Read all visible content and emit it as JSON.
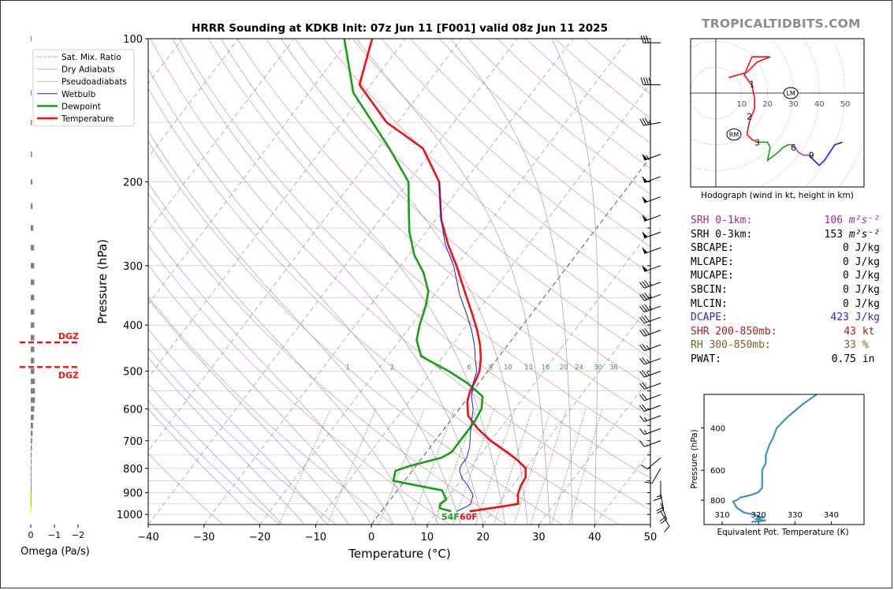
{
  "title": "HRRR Sounding at KDKB Init: 07z Jun 11 [F001] valid 08z Jun 11 2025",
  "brand": "TROPICALTIDBITS.COM",
  "colors": {
    "temperature": "#ee1111",
    "dewpoint": "#16a016",
    "wetbulb": "#1a1af0",
    "dry_adiabat": "#e07a7a",
    "moist_adiabat": "#9a9ad0",
    "mixing_ratio": "#3a9a3a",
    "isotherm": "#999999",
    "dgz": "#ee1111",
    "theta_e": "#3a96b4",
    "hodo_low": "#ee1111",
    "hodo_mid": "#16a016",
    "hodo_high1": "#b040b0",
    "hodo_high2": "#1a1af0",
    "srh01": "#9a2a9a",
    "dcape": "#2a2ac8",
    "shr": "#a02020",
    "rh": "#806020"
  },
  "chart_data": [
    {
      "type": "line",
      "name": "skewt",
      "xlabel": "Temperature (°C)",
      "ylabel": "Pressure (hPa)",
      "xlim": [
        -40,
        50
      ],
      "ylim": [
        1050,
        100
      ],
      "x_ticks": [
        "−40",
        "−30",
        "−20",
        "−10",
        "0",
        "10",
        "20",
        "30",
        "40",
        "50"
      ],
      "y_ticks": [
        "100",
        "200",
        "300",
        "400",
        "500",
        "600",
        "700",
        "800",
        "900",
        "1000"
      ],
      "legend_position": "top-left",
      "legend": [
        "Sat. Mix. Ratio",
        "Dry Adiabats",
        "Pseudoadiabats",
        "Wetbulb",
        "Dewpoint",
        "Temperature"
      ],
      "mixing_ratio_labels": [
        "1",
        "2",
        "4",
        "6",
        "8",
        "10",
        "13",
        "16",
        "20",
        "24",
        "30",
        "36"
      ],
      "sfc_dewpoint_label": "54F",
      "sfc_temperature_label": "60F",
      "series": [
        {
          "name": "Temperature",
          "points": [
            [
              15.8,
              985
            ],
            [
              21.5,
              960
            ],
            [
              23.5,
              950
            ],
            [
              22.2,
              910
            ],
            [
              21.5,
              870
            ],
            [
              21.2,
              835
            ],
            [
              20.0,
              800
            ],
            [
              17.5,
              770
            ],
            [
              14.5,
              740
            ],
            [
              10.0,
              700
            ],
            [
              6.0,
              660
            ],
            [
              2.5,
              620
            ],
            [
              0.5,
              580
            ],
            [
              -0.5,
              550
            ],
            [
              -1.0,
              520
            ],
            [
              -1.5,
              500
            ],
            [
              -3.0,
              470
            ],
            [
              -5.0,
              440
            ],
            [
              -7.5,
              410
            ],
            [
              -10.5,
              380
            ],
            [
              -15.0,
              340
            ],
            [
              -20.0,
              300
            ],
            [
              -24.5,
              270
            ],
            [
              -29.0,
              240
            ],
            [
              -34.5,
              200
            ],
            [
              -42.0,
              170
            ],
            [
              -52.0,
              150
            ],
            [
              -62.0,
              125
            ],
            [
              -66.0,
              100
            ]
          ]
        },
        {
          "name": "Dewpoint",
          "points": [
            [
              12.5,
              985
            ],
            [
              10.0,
              970
            ],
            [
              9.5,
              950
            ],
            [
              10.0,
              930
            ],
            [
              8.0,
              890
            ],
            [
              -2.0,
              850
            ],
            [
              -3.0,
              810
            ],
            [
              -1.0,
              790
            ],
            [
              3.5,
              760
            ],
            [
              4.5,
              740
            ],
            [
              4.5,
              700
            ],
            [
              4.5,
              640
            ],
            [
              4.0,
              600
            ],
            [
              2.5,
              565
            ],
            [
              -2.0,
              530
            ],
            [
              -7.0,
              500
            ],
            [
              -14.0,
              465
            ],
            [
              -17.0,
              430
            ],
            [
              -18.5,
              400
            ],
            [
              -20.0,
              365
            ],
            [
              -21.5,
              340
            ],
            [
              -25.0,
              310
            ],
            [
              -29.0,
              285
            ],
            [
              -33.0,
              255
            ],
            [
              -36.0,
              230
            ],
            [
              -40.0,
              200
            ],
            [
              -48.0,
              170
            ],
            [
              -62.0,
              130
            ],
            [
              -71.0,
              100
            ]
          ]
        },
        {
          "name": "Wetbulb",
          "points": [
            [
              13.5,
              985
            ],
            [
              14.5,
              965
            ],
            [
              15.0,
              950
            ],
            [
              14.2,
              910
            ],
            [
              12.0,
              870
            ],
            [
              10.0,
              840
            ],
            [
              8.5,
              810
            ],
            [
              8.0,
              790
            ],
            [
              8.0,
              760
            ],
            [
              7.0,
              720
            ],
            [
              5.5,
              680
            ],
            [
              4.0,
              640
            ],
            [
              2.5,
              600
            ],
            [
              0.5,
              565
            ],
            [
              -1.0,
              530
            ],
            [
              -2.0,
              500
            ],
            [
              -4.0,
              470
            ],
            [
              -6.0,
              440
            ],
            [
              -8.5,
              410
            ],
            [
              -11.5,
              380
            ],
            [
              -15.5,
              345
            ],
            [
              -20.5,
              300
            ],
            [
              -25.0,
              270
            ],
            [
              -29.0,
              240
            ],
            [
              -34.5,
              200
            ]
          ]
        }
      ],
      "wind_barbs_kt": [
        {
          "p": 985,
          "dir": 150,
          "spd": 10
        },
        {
          "p": 945,
          "dir": 160,
          "spd": 20
        },
        {
          "p": 900,
          "dir": 170,
          "spd": 20
        },
        {
          "p": 850,
          "dir": 180,
          "spd": 15
        },
        {
          "p": 800,
          "dir": 210,
          "spd": 10
        },
        {
          "p": 760,
          "dir": 230,
          "spd": 10
        },
        {
          "p": 700,
          "dir": 250,
          "spd": 10
        },
        {
          "p": 660,
          "dir": 250,
          "spd": 15
        },
        {
          "p": 620,
          "dir": 250,
          "spd": 15
        },
        {
          "p": 590,
          "dir": 250,
          "spd": 20
        },
        {
          "p": 560,
          "dir": 250,
          "spd": 20
        },
        {
          "p": 530,
          "dir": 250,
          "spd": 20
        },
        {
          "p": 500,
          "dir": 250,
          "spd": 25
        },
        {
          "p": 470,
          "dir": 250,
          "spd": 25
        },
        {
          "p": 440,
          "dir": 250,
          "spd": 25
        },
        {
          "p": 410,
          "dir": 250,
          "spd": 30
        },
        {
          "p": 385,
          "dir": 250,
          "spd": 30
        },
        {
          "p": 365,
          "dir": 250,
          "spd": 35
        },
        {
          "p": 345,
          "dir": 250,
          "spd": 35
        },
        {
          "p": 325,
          "dir": 250,
          "spd": 35
        },
        {
          "p": 300,
          "dir": 250,
          "spd": 50
        },
        {
          "p": 275,
          "dir": 250,
          "spd": 50
        },
        {
          "p": 255,
          "dir": 250,
          "spd": 50
        },
        {
          "p": 235,
          "dir": 250,
          "spd": 50
        },
        {
          "p": 215,
          "dir": 250,
          "spd": 50
        },
        {
          "p": 195,
          "dir": 250,
          "spd": 50
        },
        {
          "p": 175,
          "dir": 250,
          "spd": 55
        },
        {
          "p": 150,
          "dir": 260,
          "spd": 35
        },
        {
          "p": 125,
          "dir": 270,
          "spd": 40
        },
        {
          "p": 102,
          "dir": 270,
          "spd": 30
        }
      ]
    },
    {
      "type": "bar",
      "name": "omega",
      "xlabel": "Omega (Pa/s)",
      "x_ticks": [
        "0",
        "−1",
        "−2"
      ],
      "xlim": [
        1.3,
        -2.5
      ],
      "dgz_label": "DGZ",
      "dgz_pressures": [
        435,
        490
      ],
      "levels": [
        {
          "p": 100,
          "v": -0.05
        },
        {
          "p": 130,
          "v": -0.07
        },
        {
          "p": 150,
          "v": -0.09
        },
        {
          "p": 175,
          "v": -0.11
        },
        {
          "p": 200,
          "v": -0.13
        },
        {
          "p": 225,
          "v": -0.15
        },
        {
          "p": 250,
          "v": -0.22
        },
        {
          "p": 275,
          "v": -0.28
        },
        {
          "p": 300,
          "v": -0.3
        },
        {
          "p": 325,
          "v": -0.3
        },
        {
          "p": 350,
          "v": -0.3
        },
        {
          "p": 375,
          "v": -0.3
        },
        {
          "p": 400,
          "v": -0.3
        },
        {
          "p": 425,
          "v": -0.3
        },
        {
          "p": 450,
          "v": -0.3
        },
        {
          "p": 475,
          "v": -0.3
        },
        {
          "p": 500,
          "v": -0.3
        },
        {
          "p": 525,
          "v": -0.35
        },
        {
          "p": 550,
          "v": -0.35
        },
        {
          "p": 575,
          "v": -0.35
        },
        {
          "p": 600,
          "v": -0.3
        },
        {
          "p": 625,
          "v": -0.25
        },
        {
          "p": 650,
          "v": -0.2
        },
        {
          "p": 675,
          "v": -0.15
        },
        {
          "p": 700,
          "v": -0.12
        },
        {
          "p": 725,
          "v": -0.1
        },
        {
          "p": 750,
          "v": -0.08
        },
        {
          "p": 775,
          "v": -0.06
        },
        {
          "p": 800,
          "v": -0.05
        },
        {
          "p": 825,
          "v": -0.04
        },
        {
          "p": 850,
          "v": -0.03
        },
        {
          "p": 875,
          "v": -0.02
        },
        {
          "p": 900,
          "v": -0.02
        },
        {
          "p": 925,
          "v": -0.01
        },
        {
          "p": 950,
          "v": -0.01
        }
      ]
    },
    {
      "type": "line",
      "name": "hodograph",
      "caption": "Hodograph (wind in kt, height in km)",
      "ring_labels": [
        "10",
        "20",
        "30",
        "40",
        "50"
      ],
      "height_labels": [
        {
          "t": "1",
          "u": 14,
          "v": 3.5
        },
        {
          "t": "2",
          "u": 13,
          "v": -9
        },
        {
          "t": "3",
          "u": 16,
          "v": -19
        },
        {
          "t": "6",
          "u": 30,
          "v": -21
        },
        {
          "t": "9",
          "u": 37,
          "v": -24
        }
      ],
      "storm_motion": [
        {
          "label": "RM",
          "u": 7,
          "v": -16
        },
        {
          "label": "LM",
          "u": 29,
          "v": 0
        }
      ],
      "segments": [
        {
          "color_key": "hodo_low",
          "points": [
            [
              5,
              6
            ],
            [
              12,
              8
            ],
            [
              16,
              12
            ],
            [
              21,
              14
            ],
            [
              14,
              14
            ],
            [
              11,
              7
            ],
            [
              14,
              3
            ],
            [
              15,
              -2
            ],
            [
              15,
              -6
            ],
            [
              13,
              -11
            ],
            [
              12,
              -16
            ],
            [
              14,
              -18
            ],
            [
              16,
              -19
            ]
          ]
        },
        {
          "color_key": "hodo_mid",
          "points": [
            [
              16,
              -19
            ],
            [
              20,
              -19
            ],
            [
              21,
              -21
            ],
            [
              20,
              -26
            ],
            [
              24,
              -23
            ],
            [
              26,
              -21
            ],
            [
              28,
              -20
            ],
            [
              30,
              -20
            ]
          ]
        },
        {
          "color_key": "hodo_high1",
          "points": [
            [
              30,
              -20
            ],
            [
              32,
              -23
            ],
            [
              34,
              -24
            ],
            [
              36,
              -24
            ]
          ]
        },
        {
          "color_key": "hodo_high2",
          "points": [
            [
              36,
              -24
            ],
            [
              38,
              -26
            ],
            [
              40,
              -28
            ],
            [
              42,
              -26
            ],
            [
              44,
              -23
            ],
            [
              46,
              -20
            ],
            [
              49,
              -19
            ]
          ]
        }
      ]
    },
    {
      "type": "line",
      "name": "theta_e",
      "xlabel": "Equivalent Pot. Temperature (K)",
      "ylabel": "Pressure (hPa)",
      "xlim": [
        305,
        349
      ],
      "ylim": [
        1010,
        290
      ],
      "x_ticks": [
        "310",
        "320",
        "330",
        "340"
      ],
      "y_ticks": [
        "400",
        "600",
        "800"
      ],
      "points": [
        [
          318,
          985
        ],
        [
          320,
          980
        ],
        [
          322,
          972
        ],
        [
          319,
          960
        ],
        [
          321,
          945
        ],
        [
          319,
          920
        ],
        [
          316,
          900
        ],
        [
          314,
          860
        ],
        [
          313,
          810
        ],
        [
          314,
          800
        ],
        [
          315,
          780
        ],
        [
          318,
          760
        ],
        [
          320,
          740
        ],
        [
          321,
          710
        ],
        [
          321,
          680
        ],
        [
          321,
          640
        ],
        [
          321,
          600
        ],
        [
          322,
          560
        ],
        [
          322,
          520
        ],
        [
          323,
          470
        ],
        [
          324,
          440
        ],
        [
          325,
          400
        ],
        [
          328,
          360
        ],
        [
          332,
          320
        ],
        [
          336,
          290
        ]
      ]
    }
  ],
  "stats": [
    {
      "label": "SRH 0-1km:",
      "value": "106",
      "unit": "m²s⁻²",
      "color_key": "srh01"
    },
    {
      "label": "SRH 0-3km:",
      "value": "153",
      "unit": "m²s⁻²",
      "color_key": ""
    },
    {
      "label": "SBCAPE:",
      "value": "0",
      "unit": "J/kg",
      "color_key": ""
    },
    {
      "label": "MLCAPE:",
      "value": "0",
      "unit": "J/kg",
      "color_key": ""
    },
    {
      "label": "MUCAPE:",
      "value": "0",
      "unit": "J/kg",
      "color_key": ""
    },
    {
      "label": "SBCIN:",
      "value": "0",
      "unit": "J/kg",
      "color_key": ""
    },
    {
      "label": "MLCIN:",
      "value": "0",
      "unit": "J/kg",
      "color_key": ""
    },
    {
      "label": "DCAPE:",
      "value": "423",
      "unit": "J/kg",
      "color_key": "dcape"
    },
    {
      "label": "SHR 200-850mb:",
      "value": "43",
      "unit": "kt",
      "color_key": "shr"
    },
    {
      "label": "RH 300-850mb:",
      "value": "33",
      "unit": "%",
      "color_key": "rh"
    },
    {
      "label": "PWAT:",
      "value": "0.75",
      "unit": "in",
      "color_key": ""
    }
  ]
}
